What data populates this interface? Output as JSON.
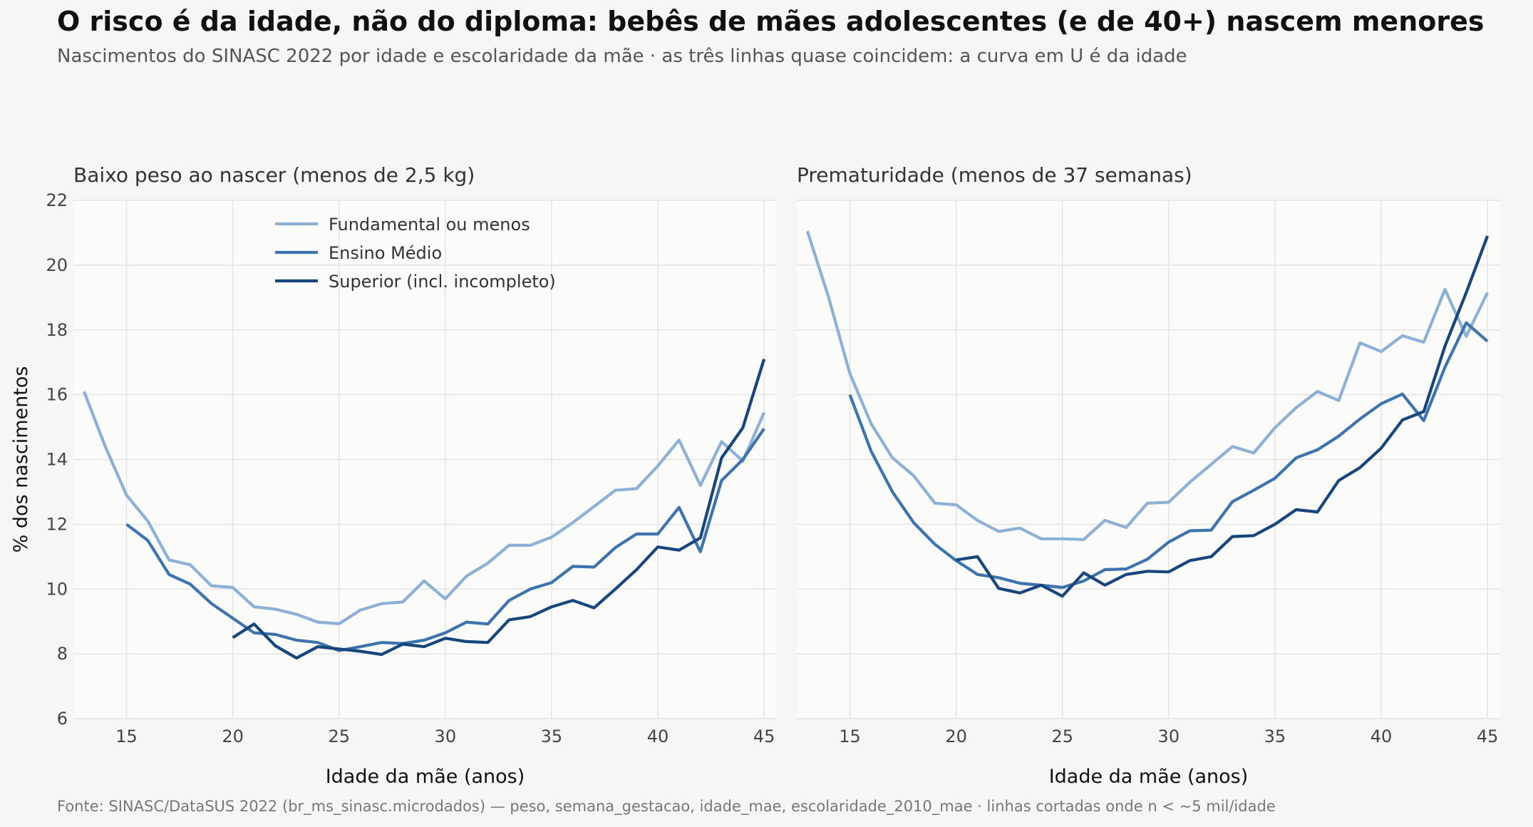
{
  "title": "O risco é da idade, não do diploma: bebês de mães adolescentes (e de 40+) nascem menores",
  "subtitle": "Nascimentos do SINASC 2022 por idade e escolaridade da mãe · as três linhas quase coincidem: a curva em U é da idade",
  "footer": "Fonte: SINASC/DataSUS 2022 (br_ms_sinasc.microdados) — peso, semana_gestacao, idade_mae, escolaridade_2010_mae · linhas cortadas onde n < ~5 mil/idade",
  "colors": {
    "Fundamental ou menos": "#8db0d6",
    "Ensino Médio": "#3d74ad",
    "Superior (incl. incompleto)": "#17467c"
  },
  "chart_data": [
    {
      "type": "line",
      "title": "Baixo peso ao nascer (menos de 2,5 kg)",
      "xlabel": "Idade da mãe (anos)",
      "ylabel": "% dos nascimentos",
      "xlim": [
        12.5,
        45.6
      ],
      "ylim": [
        6,
        22
      ],
      "xticks": [
        15,
        20,
        25,
        30,
        35,
        40,
        45
      ],
      "yticks": [
        6,
        8,
        10,
        12,
        14,
        16,
        18,
        20,
        22
      ],
      "grid": true,
      "legend": "top-center",
      "series": [
        {
          "name": "Fundamental ou menos",
          "x0": 13,
          "values": [
            16.1,
            14.4,
            12.9,
            12.1,
            10.9,
            10.75,
            10.1,
            10.05,
            9.45,
            9.38,
            9.22,
            8.98,
            8.93,
            9.35,
            9.55,
            9.6,
            10.25,
            9.7,
            10.4,
            10.8,
            11.35,
            11.35,
            11.6,
            12.05,
            12.55,
            13.05,
            13.1,
            13.8,
            14.6,
            13.2,
            14.55,
            13.95,
            15.45
          ]
        },
        {
          "name": "Ensino Médio",
          "x0": 15,
          "values": [
            12.0,
            11.5,
            10.45,
            10.15,
            9.55,
            9.1,
            8.65,
            8.6,
            8.42,
            8.35,
            8.1,
            8.22,
            8.35,
            8.32,
            8.42,
            8.65,
            8.98,
            8.92,
            9.65,
            10.0,
            10.2,
            10.7,
            10.68,
            11.28,
            11.7,
            11.7,
            12.52,
            11.15,
            13.35,
            14.0,
            14.95
          ]
        },
        {
          "name": "Superior (incl. incompleto)",
          "x0": 20,
          "values": [
            8.5,
            8.92,
            8.25,
            7.87,
            8.22,
            8.15,
            8.08,
            7.98,
            8.3,
            8.22,
            8.48,
            8.38,
            8.35,
            9.05,
            9.15,
            9.45,
            9.65,
            9.42,
            10.0,
            10.6,
            11.3,
            11.2,
            11.58,
            14.05,
            14.98,
            17.1
          ]
        }
      ]
    },
    {
      "type": "line",
      "title": "Prematuridade (menos de 37 semanas)",
      "xlabel": "Idade da mãe (anos)",
      "ylabel": "",
      "xlim": [
        12.5,
        45.6
      ],
      "ylim": [
        6,
        22
      ],
      "xticks": [
        15,
        20,
        25,
        30,
        35,
        40,
        45
      ],
      "yticks": [
        6,
        8,
        10,
        12,
        14,
        16,
        18,
        20,
        22
      ],
      "grid": true,
      "series": [
        {
          "name": "Fundamental ou menos",
          "x0": 13,
          "values": [
            21.05,
            19.0,
            16.65,
            15.1,
            14.05,
            13.5,
            12.65,
            12.6,
            12.12,
            11.78,
            11.88,
            11.55,
            11.55,
            11.53,
            12.12,
            11.9,
            12.65,
            12.68,
            13.3,
            13.85,
            14.4,
            14.2,
            14.98,
            15.6,
            16.1,
            15.82,
            17.6,
            17.33,
            17.82,
            17.62,
            19.25,
            17.8,
            19.15
          ]
        },
        {
          "name": "Ensino Médio",
          "x0": 15,
          "values": [
            16.0,
            14.25,
            13.0,
            12.05,
            11.38,
            10.88,
            10.45,
            10.35,
            10.18,
            10.12,
            10.05,
            10.25,
            10.6,
            10.62,
            10.92,
            11.45,
            11.8,
            11.82,
            12.7,
            13.05,
            13.42,
            14.05,
            14.3,
            14.72,
            15.25,
            15.72,
            16.02,
            15.2,
            16.85,
            18.22,
            17.65
          ]
        },
        {
          "name": "Superior (incl. incompleto)",
          "x0": 20,
          "values": [
            10.9,
            11.0,
            10.02,
            9.88,
            10.12,
            9.78,
            10.5,
            10.12,
            10.45,
            10.55,
            10.53,
            10.88,
            11.0,
            11.62,
            11.65,
            12.0,
            12.45,
            12.38,
            13.35,
            13.75,
            14.35,
            15.22,
            15.48,
            17.5,
            19.15,
            20.9
          ]
        }
      ]
    }
  ]
}
